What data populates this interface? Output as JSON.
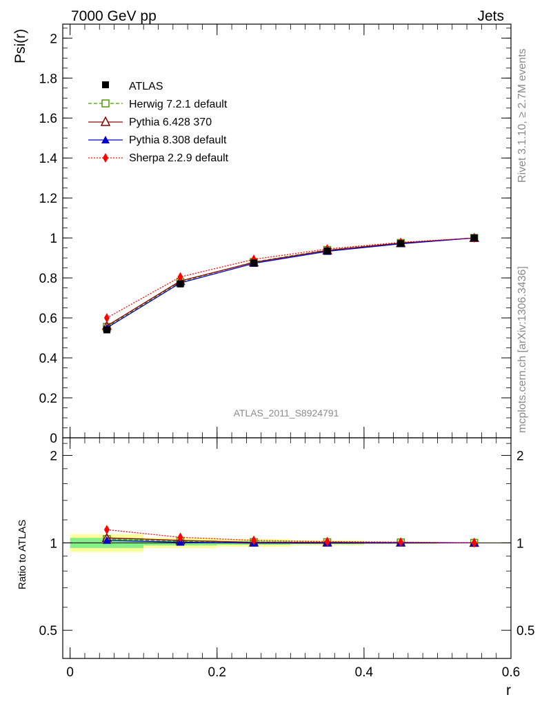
{
  "header": {
    "left": "7000 GeV pp",
    "right": "Jets"
  },
  "side_labels": {
    "rivet": "Rivet 3.1.10, ≥ 2.7M events",
    "mcplots": "mcplots.cern.ch [arXiv:1306.3436]"
  },
  "analysis_id": "ATLAS_2011_S8924791",
  "legend": {
    "atlas": "ATLAS",
    "herwig": "Herwig 7.2.1 default",
    "pythia6": "Pythia 6.428 370",
    "pythia8": "Pythia 8.308 default",
    "sherpa": "Sherpa 2.2.9 default"
  },
  "colors": {
    "atlas": "#000000",
    "herwig": "#4c9a00",
    "pythia6": "#8b0000",
    "pythia8": "#0000cc",
    "sherpa": "#ff0000",
    "band_inner": "#86ee86",
    "band_outer": "#ffff99"
  },
  "chart_data": [
    {
      "type": "line",
      "panel": "main",
      "xlabel": "r",
      "ylabel": "Psi(r)",
      "xlim": [
        -0.01,
        0.6
      ],
      "ylim": [
        0,
        2.07
      ],
      "x_ticks": [
        0,
        0.2,
        0.4,
        0.6
      ],
      "y_ticks": [
        0,
        0.2,
        0.4,
        0.6,
        0.8,
        1,
        1.2,
        1.4,
        1.6,
        1.8,
        2
      ],
      "y_tick_labels": [
        "0",
        "0.2",
        "0.4",
        "0.6",
        "0.8",
        "1",
        "1.2",
        "1.4",
        "1.6",
        "1.8",
        "2"
      ],
      "x": [
        0.05,
        0.15,
        0.25,
        0.35,
        0.45,
        0.55
      ],
      "series": [
        {
          "name": "ATLAS",
          "key": "atlas",
          "values": [
            0.54,
            0.77,
            0.875,
            0.935,
            0.972,
            1.0
          ]
        },
        {
          "name": "Herwig 7.2.1 default",
          "key": "herwig",
          "values": [
            0.555,
            0.78,
            0.88,
            0.94,
            0.975,
            1.0
          ]
        },
        {
          "name": "Pythia 6.428 370",
          "key": "pythia6",
          "values": [
            0.56,
            0.785,
            0.878,
            0.938,
            0.974,
            1.0
          ]
        },
        {
          "name": "Pythia 8.308 default",
          "key": "pythia8",
          "values": [
            0.55,
            0.775,
            0.873,
            0.933,
            0.971,
            1.0
          ]
        },
        {
          "name": "Sherpa 2.2.9 default",
          "key": "sherpa",
          "values": [
            0.6,
            0.805,
            0.893,
            0.945,
            0.978,
            1.0
          ]
        }
      ]
    },
    {
      "type": "line",
      "panel": "ratio",
      "ylabel": "Ratio to ATLAS",
      "xlabel": "r",
      "xlim": [
        -0.01,
        0.6
      ],
      "ylim": [
        0.4,
        2.3
      ],
      "y_scale": "log",
      "y_ticks": [
        0.5,
        1,
        2
      ],
      "y_tick_labels": [
        "0.5",
        "1",
        "2"
      ],
      "x_ticks": [
        0,
        0.2,
        0.4,
        0.6
      ],
      "x_tick_labels": [
        "0",
        "0.2",
        "0.4",
        "0.6"
      ],
      "x": [
        0.05,
        0.15,
        0.25,
        0.35,
        0.45,
        0.55
      ],
      "bands": {
        "bin_edges": [
          0,
          0.1,
          0.2,
          0.3,
          0.4,
          0.5,
          0.6
        ],
        "inner_lo": [
          0.96,
          0.98,
          0.985,
          0.99,
          0.995,
          0.998
        ],
        "inner_hi": [
          1.04,
          1.02,
          1.015,
          1.01,
          1.005,
          1.002
        ],
        "outer_lo": [
          0.93,
          0.96,
          0.97,
          0.98,
          0.99,
          0.996
        ],
        "outer_hi": [
          1.07,
          1.04,
          1.03,
          1.02,
          1.01,
          1.004
        ]
      },
      "series": [
        {
          "name": "Herwig 7.2.1 default",
          "key": "herwig",
          "values": [
            1.03,
            1.013,
            1.006,
            1.005,
            1.003,
            1.0
          ]
        },
        {
          "name": "Pythia 6.428 370",
          "key": "pythia6",
          "values": [
            1.04,
            1.02,
            1.003,
            1.003,
            1.002,
            1.0
          ]
        },
        {
          "name": "Pythia 8.308 default",
          "key": "pythia8",
          "values": [
            1.02,
            1.005,
            0.998,
            0.998,
            0.999,
            1.0
          ]
        },
        {
          "name": "Sherpa 2.2.9 default",
          "key": "sherpa",
          "values": [
            1.11,
            1.045,
            1.02,
            1.01,
            1.006,
            1.0
          ]
        }
      ]
    }
  ]
}
